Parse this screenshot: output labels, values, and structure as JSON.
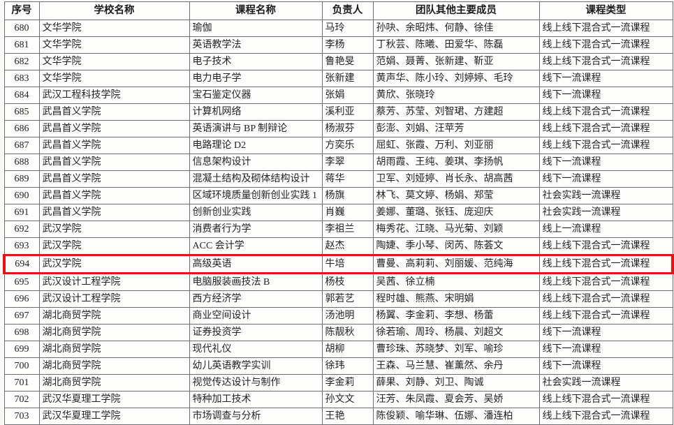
{
  "document": {
    "kind": "scanned-approval-list-table",
    "highlight": {
      "row_no": "694",
      "color": "#e41410"
    },
    "table": {
      "columns": [
        {
          "key": "no",
          "label": "序号"
        },
        {
          "key": "school",
          "label": "学校名称"
        },
        {
          "key": "course",
          "label": "课程名称"
        },
        {
          "key": "leader",
          "label": "负责人"
        },
        {
          "key": "members",
          "label": "团队其他主要成员"
        },
        {
          "key": "type",
          "label": "课程类型"
        }
      ],
      "rows": [
        {
          "no": "680",
          "school": "文华学院",
          "course": "瑜伽",
          "leader": "马玲",
          "members": "孙吷、余昭炜、何静、徐佳",
          "type": "线上线下混合式一流课程",
          "highlighted": false
        },
        {
          "no": "681",
          "school": "文华学院",
          "course": "英语教学法",
          "leader": "李杨",
          "members": "丁秋芸、陈曦、田爱华、陈磊",
          "type": "线上线下混合式一流课程",
          "highlighted": false
        },
        {
          "no": "682",
          "school": "文华学院",
          "course": "电子技术",
          "leader": "鲁艳旻",
          "members": "范娟、聂菁、张新建、靳亚",
          "type": "线上线下混合式一流课程",
          "highlighted": false
        },
        {
          "no": "683",
          "school": "文华学院",
          "course": "电力电子学",
          "leader": "张新建",
          "members": "黄声华、陈小玲、刘婷婷、毛玲",
          "type": "线下一流课程",
          "highlighted": false
        },
        {
          "no": "684",
          "school": "武汉工程科技学院",
          "course": "宝石鉴定仪器",
          "leader": "张娟",
          "members": "黄欣、张晓玲",
          "type": "线下一流课程",
          "highlighted": false
        },
        {
          "no": "685",
          "school": "武昌首义学院",
          "course": "计算机网络",
          "leader": "溪利亚",
          "members": "蔡芳、苏莹、刘智珺、方建超",
          "type": "线上线下混合式一流课程",
          "highlighted": false
        },
        {
          "no": "686",
          "school": "武昌首义学院",
          "course": "英语演讲与 BP 制辩论",
          "leader": "杨淑芬",
          "members": "彭澎、刘娟、汪苹芳",
          "type": "线上线下混合式一流课程",
          "highlighted": false
        },
        {
          "no": "687",
          "school": "武昌首义学院",
          "course": "电路理论 D2",
          "leader": "方奕乐",
          "members": "屈虹、张霞、万利、刘亚丽",
          "type": "线上线下混合式一流课程",
          "highlighted": false
        },
        {
          "no": "688",
          "school": "武昌首义学院",
          "course": "信息架构设计",
          "leader": "李翠",
          "members": "胡雨霞、王纯、姜琪、李扬帆",
          "type": "线下一流课程",
          "highlighted": false
        },
        {
          "no": "689",
          "school": "武昌首义学院",
          "course": "混凝土结构及砌体结构设计",
          "leader": "蒋华",
          "members": "卫军、刘娅婷、肖长永、胡高茜",
          "type": "线下一流课程",
          "highlighted": false
        },
        {
          "no": "690",
          "school": "武昌首义学院",
          "course": "区域环境质量创新创业实践 1",
          "leader": "杨旗",
          "members": "林飞、莫文婷、杨娟、郑莹",
          "type": "社会实践一流课程",
          "highlighted": false
        },
        {
          "no": "691",
          "school": "武昌首义学院",
          "course": "创新创业实践",
          "leader": "肖巍",
          "members": "姜娜、董璐、张钰、庞迎庆",
          "type": "社会实践一流课程",
          "highlighted": false
        },
        {
          "no": "692",
          "school": "武汉学院",
          "course": "消费者行为学",
          "leader": "李祖兰",
          "members": "梅秀花、江晓、马光菊、刘颖",
          "type": "线上一流课程",
          "highlighted": false
        },
        {
          "no": "693",
          "school": "武汉学院",
          "course": "ACC 会计学",
          "leader": "赵杰",
          "members": "陶婕、季小琴、闵芮、陈荟文",
          "type": "线上线下混合式一流课程",
          "highlighted": false
        },
        {
          "no": "694",
          "school": "武汉学院",
          "course": "高级英语",
          "leader": "牛培",
          "members": "曹曼、高莉莉、刘丽媛、范纯海",
          "type": "线上线下混合式一流课程",
          "highlighted": true
        },
        {
          "no": "695",
          "school": "武汉设计工程学院",
          "course": "电脑服装画技法 B",
          "leader": "杨枝",
          "members": "吴茜、徐立楠",
          "type": "线上线下混合式一流课程",
          "highlighted": false
        },
        {
          "no": "696",
          "school": "武汉设计工程学院",
          "course": "西方经济学",
          "leader": "郭若艺",
          "members": "程时雄、熊燕、宋明娟",
          "type": "线上线下混合式一流课程",
          "highlighted": false
        },
        {
          "no": "697",
          "school": "湖北商贸学院",
          "course": "商业空间设计",
          "leader": "汤池明",
          "members": "杨翼、李金莉、李想、杨蕾",
          "type": "线上线下混合式一流课程",
          "highlighted": false
        },
        {
          "no": "698",
          "school": "湖北商贸学院",
          "course": "证券投资学",
          "leader": "陈靓秋",
          "members": "徐若瑜、周玲、杨晨、刘超文",
          "type": "线下一流课程",
          "highlighted": false
        },
        {
          "no": "699",
          "school": "湖北商贸学院",
          "course": "现代礼仪",
          "leader": "胡柳",
          "members": "曹珍珠、苏晓梦、刘军、喻珍",
          "type": "线下一流课程",
          "highlighted": false
        },
        {
          "no": "700",
          "school": "湖北商贸学院",
          "course": "幼儿英语教学实训",
          "leader": "徐玮",
          "members": "王森、马兰慧、崔薰然、余丹",
          "type": "线下一流课程",
          "highlighted": false
        },
        {
          "no": "701",
          "school": "湖北商贸学院",
          "course": "视觉传达设计与制作",
          "leader": "李金莉",
          "members": "薛果、刘静、刘卫、陶诚",
          "type": "社会实践一流课程",
          "highlighted": false
        },
        {
          "no": "702",
          "school": "武汉华夏理工学院",
          "course": "特种加工技术",
          "leader": "孙文文",
          "members": "汪芳、朱凤霞、夏会芳、吴娇",
          "type": "线上线下混合式一流课程",
          "highlighted": false
        },
        {
          "no": "703",
          "school": "武汉华夏理工学院",
          "course": "市场调查与分析",
          "leader": "王艳",
          "members": "陈俊颖、喻华琳、伍娜、潘连柏",
          "type": "线上线下混合式一流课程",
          "highlighted": false
        }
      ]
    }
  }
}
